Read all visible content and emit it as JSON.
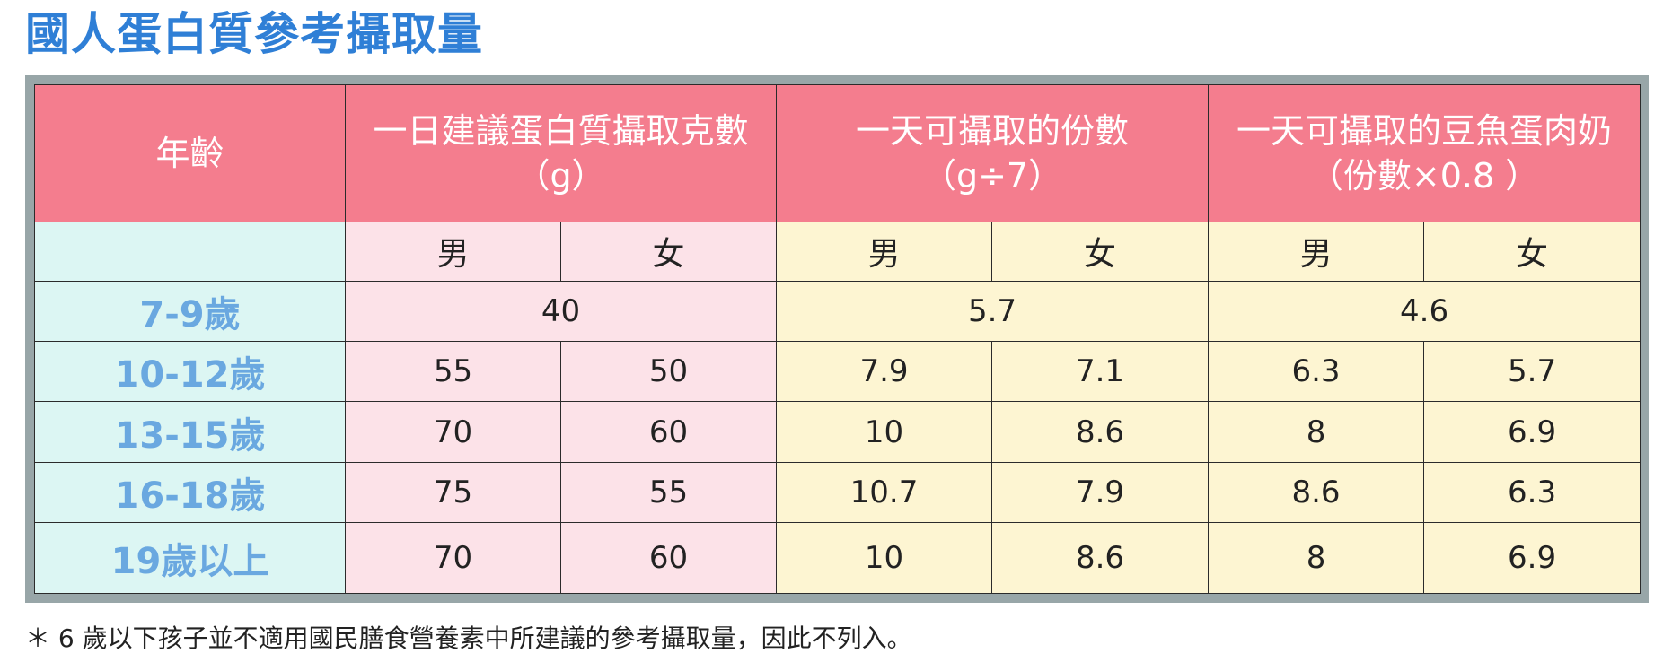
{
  "title": "國人蛋白質參考攝取量",
  "headers": {
    "age": "年齡",
    "grams_line1": "一日建議蛋白質攝取克數",
    "grams_line2": "（g）",
    "servings_line1": "一天可攝取的份數",
    "servings_line2": "（g÷7）",
    "portions_line1": "一天可攝取的豆魚蛋肉奶",
    "portions_line2": "（份數×0.8 ）",
    "male": "男",
    "female": "女"
  },
  "rows": [
    {
      "age": "7-9歲",
      "grams": "40",
      "servings": "5.7",
      "portions": "4.6"
    },
    {
      "age": "10-12歲",
      "grams_m": "55",
      "grams_f": "50",
      "servings_m": "7.9",
      "servings_f": "7.1",
      "portions_m": "6.3",
      "portions_f": "5.7"
    },
    {
      "age": "13-15歲",
      "grams_m": "70",
      "grams_f": "60",
      "servings_m": "10",
      "servings_f": "8.6",
      "portions_m": "8",
      "portions_f": "6.9"
    },
    {
      "age": "16-18歲",
      "grams_m": "75",
      "grams_f": "55",
      "servings_m": "10.7",
      "servings_f": "7.9",
      "portions_m": "8.6",
      "portions_f": "6.3"
    },
    {
      "age": "19歲以上",
      "grams_m": "70",
      "grams_f": "60",
      "servings_m": "10",
      "servings_f": "8.6",
      "portions_m": "8",
      "portions_f": "6.9"
    }
  ],
  "footnote": "＊ 6 歲以下孩子並不適用國民膳食營養素中所建議的參考攝取量，因此不列入。",
  "colors": {
    "title": "#2f7fd6",
    "header_bg": "#f47d8e",
    "age_bg": "#dcf6f3",
    "age_text": "#6aa8e0",
    "grams_bg": "#fce2e8",
    "servings_bg": "#fdf5d2",
    "frame": "#98a6a8"
  }
}
